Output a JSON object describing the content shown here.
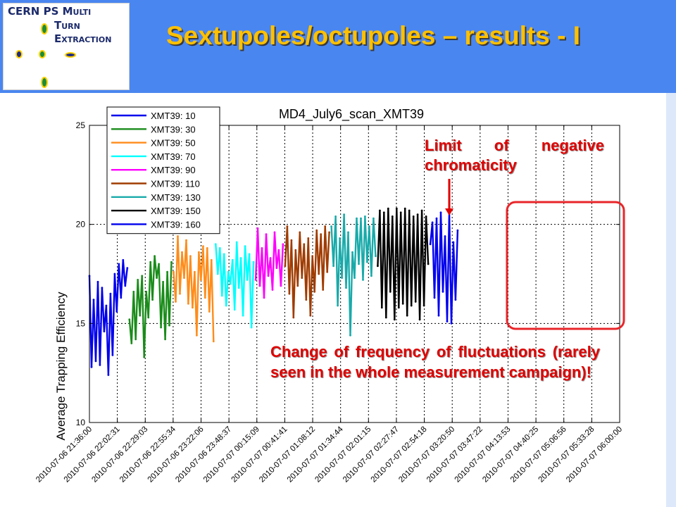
{
  "slide": {
    "title": "Sextupoles/octupoles – results - I",
    "logo": {
      "line1": "CERN PS M",
      "line1b": "ULTI",
      "line2": "T",
      "line2b": "URN",
      "line3": "E",
      "line3b": "XTRACTION"
    }
  },
  "annotations": {
    "limit": "Limit of negative chromaticity",
    "change": "Change of frequency of fluctuations (rarely seen in the whole measurement campaign)!"
  },
  "colors": {
    "header": "#4a86f0",
    "title": "#ffc000",
    "annotation": "#e00000",
    "highlight_box": "#e8262a"
  },
  "chart_data": {
    "type": "line",
    "title": "MD4_July6_scan_XMT39",
    "xlabel": "",
    "ylabel": "Average Trapping Efficiency",
    "ylim": [
      10,
      25
    ],
    "yticks": [
      10,
      15,
      20,
      25
    ],
    "grid": true,
    "legend_position": "top-left",
    "xticks": [
      "2010-07-06 21:36:00",
      "2010-07-06 22:02:31",
      "2010-07-06 22:29:03",
      "2010-07-06 22:55:34",
      "2010-07-06 23:22:06",
      "2010-07-06 23:48:37",
      "2010-07-07 00:15:09",
      "2010-07-07 00:41:41",
      "2010-07-07 01:08:12",
      "2010-07-07 01:34:44",
      "2010-07-07 02:01:15",
      "2010-07-07 02:27:47",
      "2010-07-07 02:54:18",
      "2010-07-07 03:20:50",
      "2010-07-07 03:47:22",
      "2010-07-07 04:13:53",
      "2010-07-07 04:40:25",
      "2010-07-07 05:06:56",
      "2010-07-07 05:33:28",
      "2010-07-07 06:00:00"
    ],
    "series": [
      {
        "name": "XMT39: 10",
        "color": "#0000ee",
        "x": [
          "2010-07-06 21:36:00",
          "2010-07-06 21:38:00",
          "2010-07-06 21:40:00",
          "2010-07-06 21:42:00",
          "2010-07-06 21:44:00",
          "2010-07-06 21:46:00",
          "2010-07-06 21:48:00",
          "2010-07-06 21:50:00",
          "2010-07-06 21:52:00",
          "2010-07-06 21:54:00",
          "2010-07-06 21:56:00",
          "2010-07-06 21:58:00",
          "2010-07-06 22:00:00",
          "2010-07-06 22:02:00",
          "2010-07-06 22:04:00",
          "2010-07-06 22:06:00",
          "2010-07-06 22:08:00",
          "2010-07-06 22:10:00",
          "2010-07-06 22:12:00"
        ],
        "y": [
          17.4,
          12.8,
          16.2,
          13.1,
          17.1,
          12.9,
          16.8,
          14.6,
          15.9,
          12.4,
          16.5,
          13.4,
          17.5,
          15.6,
          18.0,
          16.3,
          18.2,
          16.9,
          17.8
        ]
      },
      {
        "name": "XMT39: 30",
        "color": "#1a8c1a",
        "x": [
          "2010-07-06 22:14:00",
          "2010-07-06 22:16:00",
          "2010-07-06 22:18:00",
          "2010-07-06 22:20:00",
          "2010-07-06 22:22:00",
          "2010-07-06 22:24:00",
          "2010-07-06 22:26:00",
          "2010-07-06 22:28:00",
          "2010-07-06 22:30:00",
          "2010-07-06 22:32:00",
          "2010-07-06 22:34:00",
          "2010-07-06 22:36:00",
          "2010-07-06 22:38:00",
          "2010-07-06 22:40:00",
          "2010-07-06 22:42:00",
          "2010-07-06 22:44:00",
          "2010-07-06 22:46:00",
          "2010-07-06 22:48:00",
          "2010-07-06 22:50:00",
          "2010-07-06 22:52:00",
          "2010-07-06 22:54:00"
        ],
        "y": [
          15.2,
          14.0,
          16.6,
          14.2,
          17.2,
          15.4,
          17.4,
          13.3,
          16.6,
          15.3,
          18.1,
          16.2,
          18.4,
          17.3,
          18.0,
          14.8,
          17.1,
          14.2,
          17.6,
          14.9,
          18.1
        ]
      },
      {
        "name": "XMT39: 50",
        "color": "#ff8c1a",
        "x": [
          "2010-07-06 22:56:00",
          "2010-07-06 22:58:00",
          "2010-07-06 23:00:00",
          "2010-07-06 23:02:00",
          "2010-07-06 23:04:00",
          "2010-07-06 23:06:00",
          "2010-07-06 23:08:00",
          "2010-07-06 23:10:00",
          "2010-07-06 23:12:00",
          "2010-07-06 23:14:00",
          "2010-07-06 23:16:00",
          "2010-07-06 23:18:00",
          "2010-07-06 23:20:00",
          "2010-07-06 23:22:00",
          "2010-07-06 23:24:00",
          "2010-07-06 23:26:00",
          "2010-07-06 23:28:00",
          "2010-07-06 23:30:00",
          "2010-07-06 23:32:00",
          "2010-07-06 23:34:00"
        ],
        "y": [
          17.6,
          16.1,
          19.4,
          16.5,
          18.6,
          17.3,
          19.2,
          16.0,
          18.4,
          15.8,
          17.6,
          14.4,
          18.6,
          17.2,
          18.9,
          16.3,
          18.8,
          15.6,
          18.2,
          14.1
        ]
      },
      {
        "name": "XMT39: 70",
        "color": "#00ffff",
        "x": [
          "2010-07-06 23:36:00",
          "2010-07-06 23:38:00",
          "2010-07-06 23:40:00",
          "2010-07-06 23:42:00",
          "2010-07-06 23:44:00",
          "2010-07-06 23:46:00",
          "2010-07-06 23:48:00",
          "2010-07-06 23:50:00",
          "2010-07-06 23:52:00",
          "2010-07-06 23:54:00",
          "2010-07-06 23:56:00",
          "2010-07-06 23:58:00",
          "2010-07-07 00:00:00",
          "2010-07-07 00:02:00",
          "2010-07-07 00:04:00",
          "2010-07-07 00:06:00",
          "2010-07-07 00:08:00",
          "2010-07-07 00:10:00",
          "2010-07-07 00:12:00"
        ],
        "y": [
          19.0,
          17.5,
          18.8,
          16.4,
          18.5,
          15.9,
          17.6,
          17.0,
          18.2,
          15.7,
          19.1,
          16.8,
          18.3,
          15.4,
          18.9,
          17.2,
          18.5,
          14.8,
          18.1
        ]
      },
      {
        "name": "XMT39: 90",
        "color": "#ff00ff",
        "x": [
          "2010-07-07 00:14:00",
          "2010-07-07 00:16:00",
          "2010-07-07 00:18:00",
          "2010-07-07 00:20:00",
          "2010-07-07 00:22:00",
          "2010-07-07 00:24:00",
          "2010-07-07 00:26:00",
          "2010-07-07 00:28:00",
          "2010-07-07 00:30:00",
          "2010-07-07 00:32:00",
          "2010-07-07 00:34:00",
          "2010-07-07 00:36:00",
          "2010-07-07 00:38:00",
          "2010-07-07 00:40:00"
        ],
        "y": [
          17.2,
          19.8,
          16.9,
          18.8,
          16.3,
          19.5,
          17.4,
          18.3,
          16.7,
          19.6,
          17.8,
          18.7,
          16.9,
          19.0
        ]
      },
      {
        "name": "XMT39: 110",
        "color": "#a03c00",
        "x": [
          "2010-07-07 00:42:00",
          "2010-07-07 00:44:00",
          "2010-07-07 00:46:00",
          "2010-07-07 00:48:00",
          "2010-07-07 00:50:00",
          "2010-07-07 00:52:00",
          "2010-07-07 00:54:00",
          "2010-07-07 00:56:00",
          "2010-07-07 00:58:00",
          "2010-07-07 01:00:00",
          "2010-07-07 01:02:00",
          "2010-07-07 01:04:00",
          "2010-07-07 01:06:00",
          "2010-07-07 01:08:00",
          "2010-07-07 01:10:00",
          "2010-07-07 01:12:00",
          "2010-07-07 01:14:00",
          "2010-07-07 01:16:00",
          "2010-07-07 01:18:00",
          "2010-07-07 01:20:00",
          "2010-07-07 01:22:00",
          "2010-07-07 01:24:00"
        ],
        "y": [
          17.9,
          19.9,
          16.5,
          19.2,
          15.3,
          18.7,
          16.9,
          19.6,
          17.3,
          19.0,
          16.2,
          19.3,
          15.4,
          18.4,
          16.6,
          19.7,
          17.5,
          19.5,
          16.7,
          19.9,
          17.6,
          19.6
        ]
      },
      {
        "name": "XMT39: 130",
        "color": "#1aaaaa",
        "x": [
          "2010-07-07 01:26:00",
          "2010-07-07 01:28:00",
          "2010-07-07 01:30:00",
          "2010-07-07 01:32:00",
          "2010-07-07 01:34:00",
          "2010-07-07 01:36:00",
          "2010-07-07 01:38:00",
          "2010-07-07 01:40:00",
          "2010-07-07 01:42:00",
          "2010-07-07 01:44:00",
          "2010-07-07 01:46:00",
          "2010-07-07 01:48:00",
          "2010-07-07 01:50:00",
          "2010-07-07 01:52:00",
          "2010-07-07 01:54:00",
          "2010-07-07 01:56:00",
          "2010-07-07 01:58:00",
          "2010-07-07 02:00:00",
          "2010-07-07 02:02:00",
          "2010-07-07 02:04:00",
          "2010-07-07 02:06:00",
          "2010-07-07 02:08:00"
        ],
        "y": [
          19.9,
          17.9,
          20.4,
          15.9,
          19.3,
          17.3,
          20.5,
          16.8,
          19.6,
          14.4,
          18.6,
          17.3,
          20.3,
          18.0,
          20.3,
          17.2,
          20.4,
          18.1,
          19.9,
          17.4,
          20.3,
          18.4
        ]
      },
      {
        "name": "XMT39: 150",
        "color": "#000000",
        "x": [
          "2010-07-07 02:10:00",
          "2010-07-07 02:12:00",
          "2010-07-07 02:14:00",
          "2010-07-07 02:16:00",
          "2010-07-07 02:18:00",
          "2010-07-07 02:20:00",
          "2010-07-07 02:22:00",
          "2010-07-07 02:24:00",
          "2010-07-07 02:26:00",
          "2010-07-07 02:28:00",
          "2010-07-07 02:30:00",
          "2010-07-07 02:32:00",
          "2010-07-07 02:34:00",
          "2010-07-07 02:36:00",
          "2010-07-07 02:38:00",
          "2010-07-07 02:40:00",
          "2010-07-07 02:42:00",
          "2010-07-07 02:44:00",
          "2010-07-07 02:46:00",
          "2010-07-07 02:48:00",
          "2010-07-07 02:50:00",
          "2010-07-07 02:52:00",
          "2010-07-07 02:54:00",
          "2010-07-07 02:56:00",
          "2010-07-07 02:58:00"
        ],
        "y": [
          17.9,
          20.7,
          15.8,
          20.6,
          15.3,
          20.8,
          16.6,
          20.4,
          15.2,
          20.8,
          15.8,
          20.6,
          16.0,
          20.8,
          15.4,
          20.7,
          15.9,
          20.4,
          16.1,
          20.5,
          15.2,
          20.7,
          15.9,
          20.4,
          18.0
        ]
      },
      {
        "name": "XMT39: 160",
        "color": "#0000ee",
        "x": [
          "2010-07-07 03:00:00",
          "2010-07-07 03:02:00",
          "2010-07-07 03:04:00",
          "2010-07-07 03:06:00",
          "2010-07-07 03:08:00",
          "2010-07-07 03:10:00",
          "2010-07-07 03:12:00",
          "2010-07-07 03:14:00",
          "2010-07-07 03:16:00",
          "2010-07-07 03:18:00",
          "2010-07-07 03:20:00",
          "2010-07-07 03:22:00",
          "2010-07-07 03:24:00",
          "2010-07-07 03:26:00"
        ],
        "y": [
          19.0,
          20.1,
          16.3,
          20.3,
          15.4,
          20.6,
          16.6,
          19.4,
          15.1,
          20.6,
          15.0,
          19.1,
          16.2,
          19.7
        ]
      }
    ]
  }
}
